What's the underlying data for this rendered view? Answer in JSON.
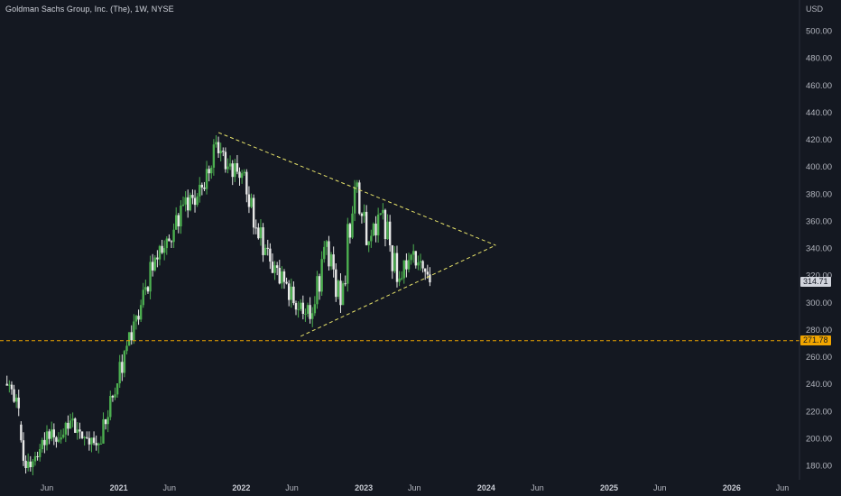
{
  "header": {
    "title": "Goldman Sachs Group, Inc. (The), 1W, NYSE",
    "currency": "USD"
  },
  "colors": {
    "background": "#141821",
    "up": "#4caf50",
    "down": "#e8e8e8",
    "triangle": "#e8e36a",
    "support_line": "#f0a500",
    "axis_text": "#b2b5be"
  },
  "y_axis": {
    "ticks": [
      "500.00",
      "480.00",
      "460.00",
      "440.00",
      "420.00",
      "400.00",
      "380.00",
      "360.00",
      "340.00",
      "320.00",
      "300.00",
      "280.00",
      "260.00",
      "240.00",
      "220.00",
      "200.00",
      "180.00"
    ]
  },
  "x_axis": {
    "ticks": [
      {
        "label": "Jun",
        "year": false
      },
      {
        "label": "2021",
        "year": true
      },
      {
        "label": "Jun",
        "year": false
      },
      {
        "label": "2022",
        "year": true
      },
      {
        "label": "Jun",
        "year": false
      },
      {
        "label": "2023",
        "year": true
      },
      {
        "label": "Jun",
        "year": false
      },
      {
        "label": "2024",
        "year": true
      },
      {
        "label": "Jun",
        "year": false
      },
      {
        "label": "2025",
        "year": true
      },
      {
        "label": "Jun",
        "year": false
      },
      {
        "label": "2026",
        "year": true
      },
      {
        "label": "Jun",
        "year": false
      }
    ]
  },
  "price_labels": {
    "last": "314.71",
    "support": "271.78"
  },
  "chart_data": {
    "type": "candlestick",
    "interval": "1W",
    "ylim": [
      170,
      510
    ],
    "xlim": [
      "2020-02-03",
      "2026-08-24"
    ],
    "last_price": 314.71,
    "support_level": 271.78,
    "triangle": {
      "upper": [
        [
          "2021-10-25",
          425
        ],
        [
          "2024-01-29",
          342
        ]
      ],
      "lower": [
        [
          "2022-06-27",
          275
        ],
        [
          "2024-01-29",
          342
        ]
      ]
    },
    "candles": [
      {
        "date": "2020-02-03",
        "open": 240,
        "high": 247,
        "low": 232,
        "close": 236
      },
      {
        "date": "2020-02-24",
        "open": 236,
        "high": 240,
        "low": 215,
        "close": 222
      },
      {
        "date": "2020-03-16",
        "open": 210,
        "high": 218,
        "low": 174,
        "close": 178
      },
      {
        "date": "2020-04-06",
        "open": 178,
        "high": 190,
        "low": 172,
        "close": 186
      },
      {
        "date": "2020-05-11",
        "open": 186,
        "high": 212,
        "low": 182,
        "close": 205
      },
      {
        "date": "2020-06-08",
        "open": 205,
        "high": 218,
        "low": 193,
        "close": 199
      },
      {
        "date": "2020-07-13",
        "open": 199,
        "high": 218,
        "low": 196,
        "close": 213
      },
      {
        "date": "2020-08-17",
        "open": 213,
        "high": 220,
        "low": 196,
        "close": 200
      },
      {
        "date": "2020-09-21",
        "open": 200,
        "high": 205,
        "low": 188,
        "close": 196
      },
      {
        "date": "2020-11-09",
        "open": 196,
        "high": 235,
        "low": 196,
        "close": 230
      },
      {
        "date": "2020-12-21",
        "open": 230,
        "high": 272,
        "low": 228,
        "close": 268
      },
      {
        "date": "2021-02-01",
        "open": 268,
        "high": 302,
        "low": 268,
        "close": 298
      },
      {
        "date": "2021-03-15",
        "open": 298,
        "high": 345,
        "low": 296,
        "close": 333
      },
      {
        "date": "2021-04-26",
        "open": 333,
        "high": 350,
        "low": 325,
        "close": 345
      },
      {
        "date": "2021-06-07",
        "open": 345,
        "high": 380,
        "low": 340,
        "close": 372
      },
      {
        "date": "2021-07-19",
        "open": 372,
        "high": 390,
        "low": 355,
        "close": 378
      },
      {
        "date": "2021-08-30",
        "open": 378,
        "high": 405,
        "low": 368,
        "close": 395
      },
      {
        "date": "2021-10-04",
        "open": 395,
        "high": 423,
        "low": 390,
        "close": 418
      },
      {
        "date": "2021-10-25",
        "open": 418,
        "high": 426,
        "low": 395,
        "close": 400
      },
      {
        "date": "2021-11-29",
        "open": 400,
        "high": 412,
        "low": 378,
        "close": 395
      },
      {
        "date": "2022-01-10",
        "open": 395,
        "high": 398,
        "low": 350,
        "close": 355
      },
      {
        "date": "2022-02-21",
        "open": 355,
        "high": 370,
        "low": 320,
        "close": 330
      },
      {
        "date": "2022-04-04",
        "open": 330,
        "high": 345,
        "low": 310,
        "close": 315
      },
      {
        "date": "2022-05-16",
        "open": 315,
        "high": 325,
        "low": 285,
        "close": 295
      },
      {
        "date": "2022-06-27",
        "open": 295,
        "high": 305,
        "low": 275,
        "close": 292
      },
      {
        "date": "2022-08-08",
        "open": 292,
        "high": 352,
        "low": 290,
        "close": 345
      },
      {
        "date": "2022-09-19",
        "open": 345,
        "high": 350,
        "low": 290,
        "close": 298
      },
      {
        "date": "2022-10-31",
        "open": 298,
        "high": 390,
        "low": 298,
        "close": 385
      },
      {
        "date": "2022-12-12",
        "open": 385,
        "high": 390,
        "low": 335,
        "close": 345
      },
      {
        "date": "2023-01-23",
        "open": 345,
        "high": 380,
        "low": 340,
        "close": 368
      },
      {
        "date": "2023-03-06",
        "open": 368,
        "high": 370,
        "low": 300,
        "close": 315
      },
      {
        "date": "2023-04-17",
        "open": 315,
        "high": 345,
        "low": 312,
        "close": 335
      },
      {
        "date": "2023-05-29",
        "open": 335,
        "high": 345,
        "low": 318,
        "close": 325
      },
      {
        "date": "2023-07-03",
        "open": 325,
        "high": 335,
        "low": 312,
        "close": 314.71
      }
    ]
  }
}
